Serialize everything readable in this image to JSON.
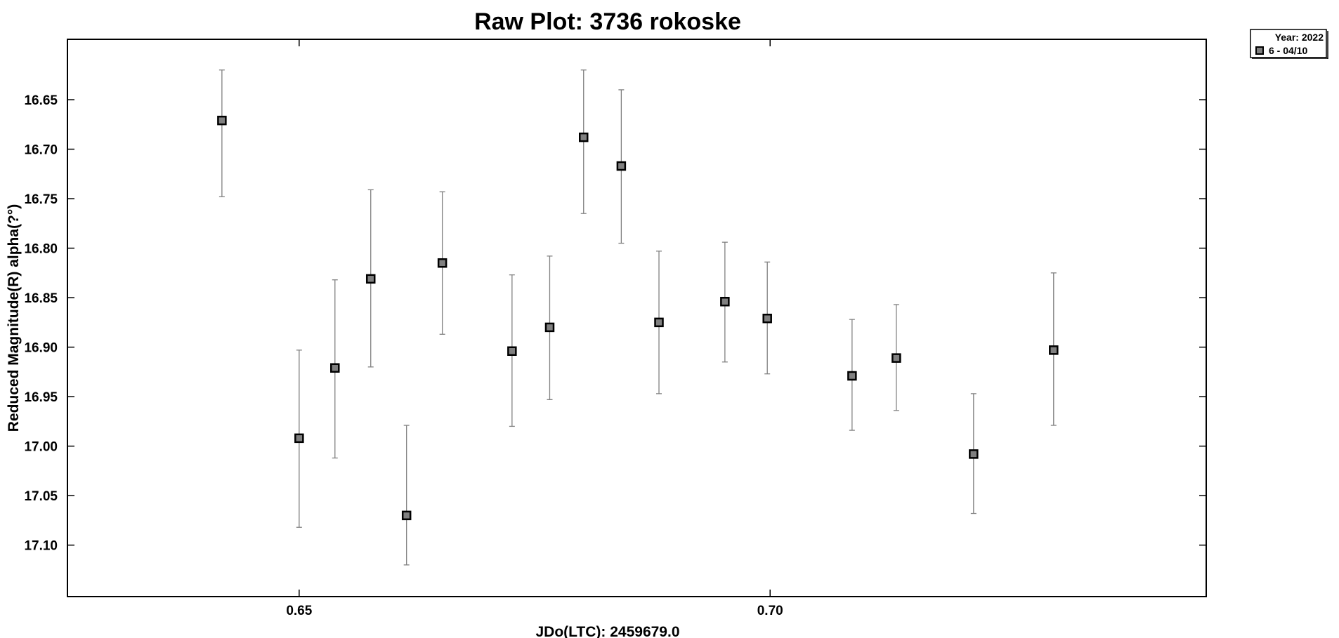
{
  "chart_data": {
    "type": "scatter",
    "title": "Raw Plot: 3736 rokoske",
    "xlabel": "JDo(LTC): 2459679.0",
    "ylabel": "Reduced Magnitude(R) alpha(?°)",
    "xlim": [
      0.6254,
      0.7463
    ],
    "ylim": [
      16.589,
      17.152
    ],
    "y_inverted": true,
    "x_ticks": [
      0.65,
      0.7
    ],
    "x_tick_labels": [
      "0.65",
      "0.70"
    ],
    "y_ticks": [
      16.65,
      16.7,
      16.75,
      16.8,
      16.85,
      16.9,
      16.95,
      17.0,
      17.05,
      17.1
    ],
    "y_tick_labels": [
      "16.65",
      "16.70",
      "16.75",
      "16.80",
      "16.85",
      "16.90",
      "16.95",
      "17.00",
      "17.05",
      "17.10"
    ],
    "grid": false,
    "legend": {
      "position": "top-right-outside",
      "title": "Year: 2022",
      "entries": [
        "6 - 04/10"
      ]
    },
    "series": [
      {
        "name": "6 - 04/10",
        "marker": "square",
        "marker_fill": "#808080",
        "marker_edge": "#000000",
        "errorbar_color": "#808080",
        "points": [
          {
            "x": 0.6418,
            "y": 16.671,
            "yerr_low": 16.62,
            "yerr_high": 16.748
          },
          {
            "x": 0.65,
            "y": 16.992,
            "yerr_low": 16.903,
            "yerr_high": 17.082
          },
          {
            "x": 0.6538,
            "y": 16.921,
            "yerr_low": 16.832,
            "yerr_high": 17.012
          },
          {
            "x": 0.6576,
            "y": 16.831,
            "yerr_low": 16.741,
            "yerr_high": 16.92
          },
          {
            "x": 0.6614,
            "y": 17.07,
            "yerr_low": 16.979,
            "yerr_high": 17.12
          },
          {
            "x": 0.6652,
            "y": 16.815,
            "yerr_low": 16.743,
            "yerr_high": 16.887
          },
          {
            "x": 0.6726,
            "y": 16.904,
            "yerr_low": 16.827,
            "yerr_high": 16.98
          },
          {
            "x": 0.6766,
            "y": 16.88,
            "yerr_low": 16.808,
            "yerr_high": 16.953
          },
          {
            "x": 0.6802,
            "y": 16.688,
            "yerr_low": 16.62,
            "yerr_high": 16.765
          },
          {
            "x": 0.6842,
            "y": 16.717,
            "yerr_low": 16.64,
            "yerr_high": 16.795
          },
          {
            "x": 0.6882,
            "y": 16.875,
            "yerr_low": 16.803,
            "yerr_high": 16.947
          },
          {
            "x": 0.6952,
            "y": 16.854,
            "yerr_low": 16.794,
            "yerr_high": 16.915
          },
          {
            "x": 0.6997,
            "y": 16.871,
            "yerr_low": 16.814,
            "yerr_high": 16.927
          },
          {
            "x": 0.7087,
            "y": 16.929,
            "yerr_low": 16.872,
            "yerr_high": 16.984
          },
          {
            "x": 0.7134,
            "y": 16.911,
            "yerr_low": 16.857,
            "yerr_high": 16.964
          },
          {
            "x": 0.7216,
            "y": 17.008,
            "yerr_low": 16.947,
            "yerr_high": 17.068
          },
          {
            "x": 0.7301,
            "y": 16.903,
            "yerr_low": 16.825,
            "yerr_high": 16.979
          }
        ]
      }
    ]
  }
}
